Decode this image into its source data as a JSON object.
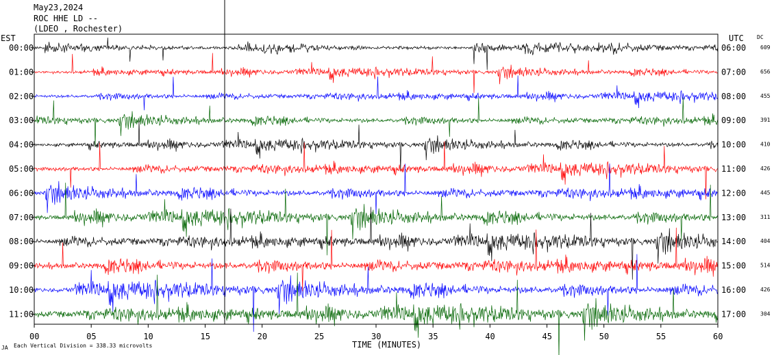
{
  "header": {
    "date": "May23,2024",
    "station": "ROC HHE LD --",
    "network": "(LDEO , Rochester)"
  },
  "axes": {
    "left_zone": "EST",
    "right_zone": "UTC",
    "dc_header": "DC",
    "xlabel": "TIME (MINUTES)",
    "footnote": "Each Vertical Division = 338.33 microvolts",
    "corner_mark": "JA"
  },
  "chart_data": {
    "type": "line",
    "title": "",
    "xlabel": "TIME (MINUTES)",
    "x_ticks": [
      "00",
      "05",
      "10",
      "15",
      "20",
      "25",
      "30",
      "35",
      "40",
      "45",
      "50",
      "55",
      "60"
    ],
    "xlim": [
      0,
      60
    ],
    "grid": false,
    "trace_colors": [
      "#000000",
      "#ff0000",
      "#0000ff",
      "#006400"
    ],
    "rows": [
      {
        "est": "00:00",
        "utc": "06:00",
        "dc": "609",
        "amplitude": 0.55
      },
      {
        "est": "01:00",
        "utc": "07:00",
        "dc": "656",
        "amplitude": 0.55
      },
      {
        "est": "02:00",
        "utc": "08:00",
        "dc": "455",
        "amplitude": 0.6
      },
      {
        "est": "03:00",
        "utc": "09:00",
        "dc": "391",
        "amplitude": 0.7
      },
      {
        "est": "04:00",
        "utc": "10:00",
        "dc": "410",
        "amplitude": 0.7
      },
      {
        "est": "05:00",
        "utc": "11:00",
        "dc": "426",
        "amplitude": 0.8
      },
      {
        "est": "06:00",
        "utc": "12:00",
        "dc": "445",
        "amplitude": 0.9
      },
      {
        "est": "07:00",
        "utc": "13:00",
        "dc": "311",
        "amplitude": 1.0
      },
      {
        "est": "08:00",
        "utc": "14:00",
        "dc": "404",
        "amplitude": 1.0
      },
      {
        "est": "09:00",
        "utc": "15:00",
        "dc": "514",
        "amplitude": 1.1
      },
      {
        "est": "10:00",
        "utc": "16:00",
        "dc": "426",
        "amplitude": 1.1
      },
      {
        "est": "11:00",
        "utc": "17:00",
        "dc": "304",
        "amplitude": 1.2
      }
    ]
  }
}
